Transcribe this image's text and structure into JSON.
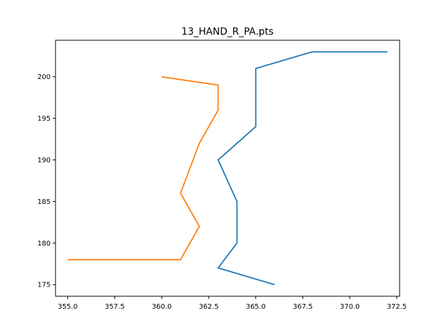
{
  "chart_data": {
    "type": "line",
    "title": "13_HAND_R_PA.pts",
    "xlabel": "",
    "ylabel": "",
    "xlim": [
      354.35,
      372.65
    ],
    "ylim": [
      173.6,
      204.4
    ],
    "xticks": [
      355.0,
      357.5,
      360.0,
      362.5,
      365.0,
      367.5,
      370.0,
      372.5
    ],
    "xtick_labels": [
      "355.0",
      "357.5",
      "360.0",
      "362.5",
      "365.0",
      "367.5",
      "370.0",
      "372.5"
    ],
    "yticks": [
      175,
      180,
      185,
      190,
      195,
      200
    ],
    "ytick_labels": [
      "175",
      "180",
      "185",
      "190",
      "195",
      "200"
    ],
    "grid": false,
    "series": [
      {
        "color": "#1f77b4",
        "x": [
          366,
          363,
          364,
          364,
          363,
          365,
          365,
          365,
          368,
          372
        ],
        "y": [
          175,
          177,
          180,
          185,
          190,
          194,
          197,
          201,
          203,
          203
        ]
      },
      {
        "color": "#ff7f0e",
        "x": [
          355,
          361,
          362,
          361,
          362,
          363,
          363,
          360
        ],
        "y": [
          178,
          178,
          182,
          186,
          192,
          196,
          199,
          200
        ]
      }
    ]
  }
}
